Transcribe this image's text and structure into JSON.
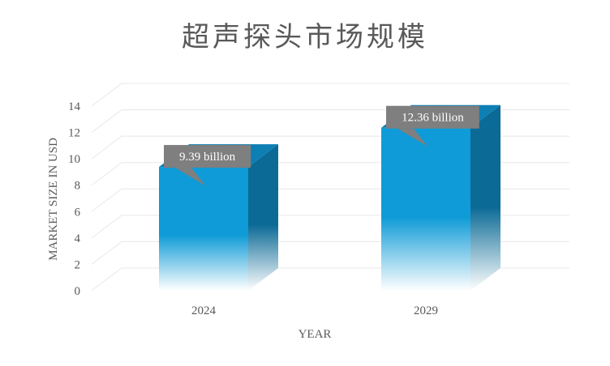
{
  "chart_data": {
    "type": "bar",
    "title": "超声探头市场规模",
    "xlabel": "YEAR",
    "ylabel": "MARKET SIZE IN USD",
    "categories": [
      "2024",
      "2029"
    ],
    "values": [
      9.39,
      12.36
    ],
    "data_labels": [
      "9.39 billion",
      "12.36 billion"
    ],
    "ylim": [
      0,
      14
    ],
    "yticks": [
      0,
      2,
      4,
      6,
      8,
      10,
      12,
      14
    ],
    "grid": true,
    "style": "3d-column",
    "colors": {
      "front": "#0f9bd7",
      "side": "#0b6a96",
      "top": "#0d7fb3",
      "label_bg": "#7f7f7f",
      "grid": "#e8e8e8",
      "text": "#595959"
    }
  }
}
